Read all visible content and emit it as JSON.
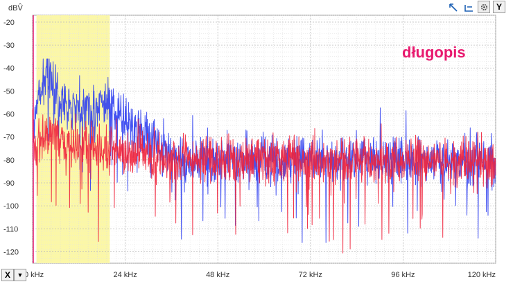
{
  "chart_data": {
    "type": "line",
    "ylabel": "dBV̂",
    "xlabel": "",
    "annotation": "długopis",
    "annotation_color": "#e8196e",
    "ylim": [
      -125,
      -17
    ],
    "xlim": [
      0,
      120
    ],
    "yticks": [
      -20,
      -30,
      -40,
      -50,
      -60,
      -70,
      -80,
      -90,
      -100,
      -110,
      -120
    ],
    "xticks": [
      {
        "value": 0,
        "label": "0 kHz"
      },
      {
        "value": 24,
        "label": "24 kHz"
      },
      {
        "value": 48,
        "label": "48 kHz"
      },
      {
        "value": 72,
        "label": "72 kHz"
      },
      {
        "value": 96,
        "label": "96 kHz"
      },
      {
        "value": 120,
        "label": "120 kHz"
      }
    ],
    "highlight_band": {
      "x_start": 1,
      "x_end": 20,
      "color": "#fbf7a8"
    },
    "grid": true,
    "series": [
      {
        "color": "#2f3ff0",
        "envelope_x": [
          0,
          1,
          2,
          3,
          4,
          5,
          6,
          8,
          10,
          12,
          14,
          16,
          18,
          20,
          22,
          24,
          26,
          28,
          30,
          32,
          34,
          36,
          40,
          50,
          60,
          80,
          100,
          120
        ],
        "envelope_y": [
          -65,
          -55,
          -50,
          -45,
          -40,
          -45,
          -52,
          -55,
          -58,
          -57,
          -58,
          -60,
          -55,
          -57,
          -60,
          -64,
          -66,
          -68,
          -70,
          -72,
          -75,
          -78,
          -80,
          -80,
          -80,
          -80,
          -80,
          -80
        ],
        "min_y": -116,
        "max_y": -36
      },
      {
        "color": "#f0243c",
        "envelope_x": [
          0,
          2,
          4,
          6,
          8,
          10,
          14,
          18,
          22,
          26,
          30,
          40,
          60,
          80,
          100,
          120
        ],
        "envelope_y": [
          -75,
          -72,
          -70,
          -68,
          -72,
          -74,
          -75,
          -76,
          -77,
          -78,
          -79,
          -80,
          -80,
          -80,
          -80,
          -80
        ],
        "min_y": -121,
        "max_y": -58
      }
    ]
  },
  "toolbar": {
    "x_label": "X",
    "y_label": "Y"
  }
}
